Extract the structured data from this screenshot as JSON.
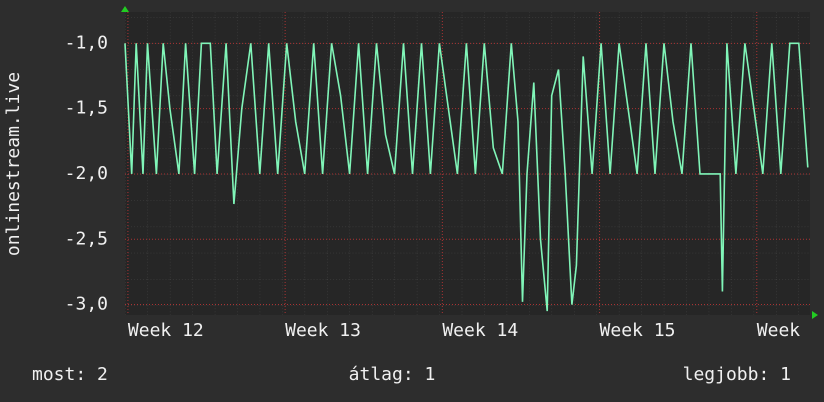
{
  "chart_data": {
    "type": "line",
    "ylabel": "onlinestream.live",
    "x": [
      0,
      0.3,
      0.5,
      0.8,
      1.0,
      1.4,
      1.7,
      2.0,
      2.4,
      2.7,
      3.1,
      3.4,
      3.8,
      4.1,
      4.5,
      4.85,
      5.2,
      5.6,
      6.0,
      6.4,
      6.8,
      7.2,
      7.6,
      8.0,
      8.4,
      8.8,
      9.2,
      9.6,
      10.0,
      10.4,
      10.8,
      11.2,
      11.6,
      12.0,
      12.4,
      12.8,
      13.2,
      13.6,
      14.0,
      14.4,
      14.8,
      15.2,
      15.6,
      16.0,
      16.4,
      16.8,
      17.2,
      17.5,
      17.7,
      17.9,
      18.2,
      18.5,
      18.8,
      19.0,
      19.3,
      19.6,
      19.9,
      20.1,
      20.4,
      20.8,
      21.2,
      21.6,
      22.0,
      22.4,
      22.8,
      23.2,
      23.6,
      24.0,
      24.4,
      24.8,
      25.2,
      25.6,
      26.5,
      26.6,
      26.8,
      27.2,
      27.6,
      28.0,
      28.4,
      28.8,
      29.2,
      29.6,
      30.0,
      30.4
    ],
    "series": [
      {
        "color": "#80f5b8",
        "values": [
          -1,
          -2,
          -1,
          -2,
          -1,
          -2,
          -1,
          -1.5,
          -2,
          -1,
          -2,
          -1,
          -1,
          -2,
          -1,
          -2.23,
          -1.5,
          -1,
          -2,
          -1,
          -2,
          -1,
          -1.6,
          -2,
          -1,
          -2,
          -1,
          -1.4,
          -2,
          -1,
          -2,
          -1,
          -1.7,
          -2,
          -1,
          -2,
          -1,
          -2,
          -1,
          -1.5,
          -2,
          -1,
          -2,
          -1,
          -1.8,
          -2,
          -1,
          -1.6,
          -2.98,
          -2.0,
          -1.3,
          -2.5,
          -3.05,
          -1.4,
          -1.2,
          -2.0,
          -3.0,
          -2.7,
          -1.1,
          -2,
          -1,
          -2,
          -1,
          -1.5,
          -2,
          -1,
          -2,
          -1,
          -1.6,
          -2,
          -1,
          -2,
          -2,
          -2.9,
          -1,
          -2,
          -1,
          -1.5,
          -2,
          -1,
          -2,
          -1,
          -1,
          -1.95
        ]
      }
    ],
    "xlim": [
      0,
      30.5
    ],
    "xticks": [
      {
        "value": 0.13,
        "label": "Week 12"
      },
      {
        "value": 7.13,
        "label": "Week 13"
      },
      {
        "value": 14.13,
        "label": "Week 14"
      },
      {
        "value": 21.13,
        "label": "Week 15"
      },
      {
        "value": 28.13,
        "label": "Week"
      }
    ],
    "ylim": [
      -3.08,
      -0.76
    ],
    "yticks": [
      {
        "value": -1,
        "label": "-1,0"
      },
      {
        "value": -1.5,
        "label": "-1,5"
      },
      {
        "value": -2,
        "label": "-2,0"
      },
      {
        "value": -2.5,
        "label": "-2,5"
      },
      {
        "value": -3,
        "label": "-3,0"
      }
    ],
    "grid": true
  },
  "footer": {
    "current": "most: 2",
    "average": "átlag: 1",
    "best": "legjobb: 1"
  }
}
